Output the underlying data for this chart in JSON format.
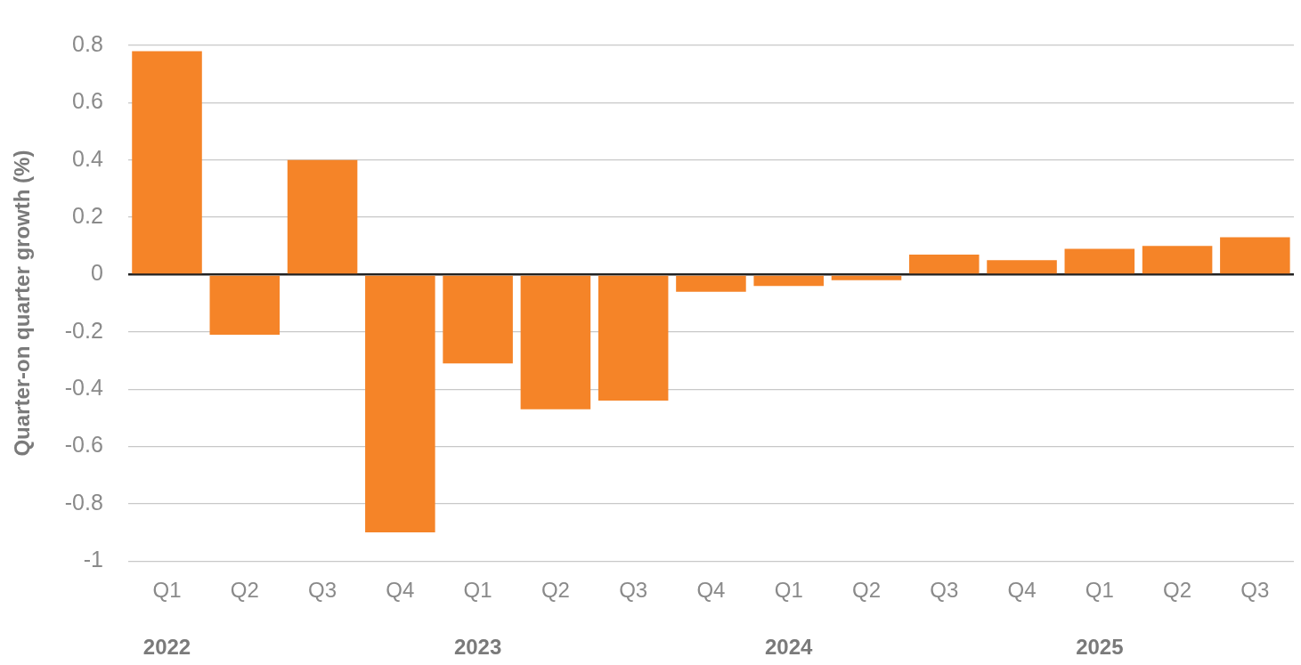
{
  "chart_data": {
    "type": "bar",
    "ylabel": "Quarter-on quarter growth (%)",
    "categories": [
      "Q1",
      "Q2",
      "Q3",
      "Q4",
      "Q1",
      "Q2",
      "Q3",
      "Q4",
      "Q1",
      "Q2",
      "Q3",
      "Q4",
      "Q1",
      "Q2",
      "Q3"
    ],
    "values": [
      0.78,
      -0.21,
      0.4,
      -0.9,
      -0.31,
      -0.47,
      -0.44,
      -0.06,
      -0.04,
      -0.02,
      0.07,
      0.05,
      0.09,
      0.1,
      0.13
    ],
    "color": "#f58428",
    "ylim": [
      -1,
      0.8
    ],
    "yticks": [
      -1,
      -0.8,
      -0.6,
      -0.4,
      -0.2,
      0,
      0.2,
      0.4,
      0.6,
      0.8
    ],
    "grid": "y",
    "annotations": [
      "2022",
      "2023",
      "2024",
      "2025"
    ]
  }
}
